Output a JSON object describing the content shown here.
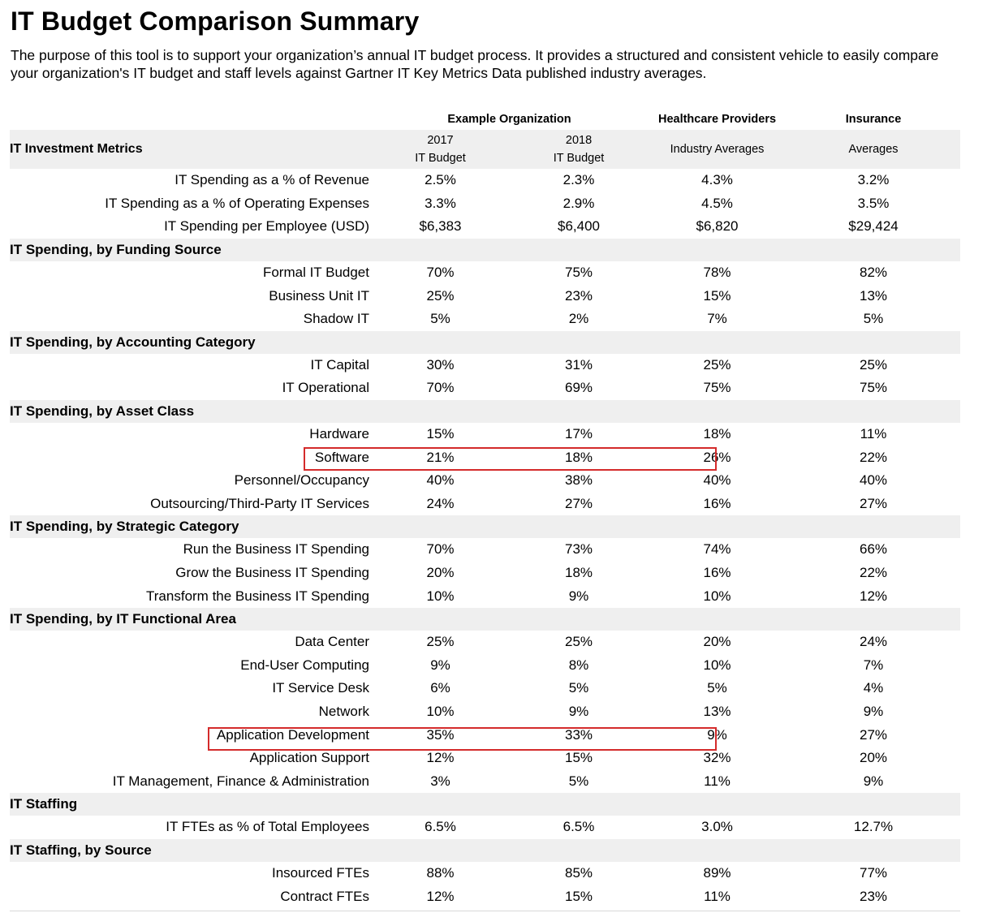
{
  "title": "IT Budget Comparison Summary",
  "description": "The purpose of this tool is to support your organization’s annual IT budget process. It provides a structured and consistent vehicle to easily compare your organization's IT budget and staff levels against Gartner IT Key Metrics Data published industry averages.",
  "header": {
    "group_example": "Example Organization",
    "group_healthcare": "Healthcare Providers",
    "group_insurance": "Insurance",
    "metrics_label": "IT Investment Metrics",
    "y2017_year": "2017",
    "y2017_sub": "IT Budget",
    "y2018_year": "2018",
    "y2018_sub": "IT Budget",
    "healthcare_sub": "Industry Averages",
    "insurance_sub": "Averages"
  },
  "investment_rows": [
    {
      "label": "IT Spending as a % of Revenue",
      "y2017": "2.5%",
      "y2018": "2.3%",
      "healthcare": "4.3%",
      "insurance": "3.2%"
    },
    {
      "label": "IT Spending as a % of Operating Expenses",
      "y2017": "3.3%",
      "y2018": "2.9%",
      "healthcare": "4.5%",
      "insurance": "3.5%"
    },
    {
      "label": "IT Spending per Employee (USD)",
      "y2017": "$6,383",
      "y2018": "$6,400",
      "healthcare": "$6,820",
      "insurance": "$29,424"
    }
  ],
  "sections": [
    {
      "title": "IT Spending, by Funding Source",
      "rows": [
        {
          "label": "Formal IT Budget",
          "y2017": "70%",
          "y2018": "75%",
          "healthcare": "78%",
          "insurance": "82%"
        },
        {
          "label": "Business Unit IT",
          "y2017": "25%",
          "y2018": "23%",
          "healthcare": "15%",
          "insurance": "13%"
        },
        {
          "label": "Shadow IT",
          "y2017": "5%",
          "y2018": "2%",
          "healthcare": "7%",
          "insurance": "5%"
        }
      ]
    },
    {
      "title": "IT Spending, by Accounting Category",
      "rows": [
        {
          "label": "IT Capital",
          "y2017": "30%",
          "y2018": "31%",
          "healthcare": "25%",
          "insurance": "25%"
        },
        {
          "label": "IT Operational",
          "y2017": "70%",
          "y2018": "69%",
          "healthcare": "75%",
          "insurance": "75%"
        }
      ]
    },
    {
      "title": "IT Spending, by Asset Class",
      "rows": [
        {
          "label": "Hardware",
          "y2017": "15%",
          "y2018": "17%",
          "healthcare": "18%",
          "insurance": "11%"
        },
        {
          "label": "Software",
          "y2017": "21%",
          "y2018": "18%",
          "healthcare": "26%",
          "insurance": "22%"
        },
        {
          "label": "Personnel/Occupancy",
          "y2017": "40%",
          "y2018": "38%",
          "healthcare": "40%",
          "insurance": "40%"
        },
        {
          "label": "Outsourcing/Third-Party IT Services",
          "y2017": "24%",
          "y2018": "27%",
          "healthcare": "16%",
          "insurance": "27%"
        }
      ]
    },
    {
      "title": "IT Spending, by Strategic Category",
      "rows": [
        {
          "label": "Run the Business IT Spending",
          "y2017": "70%",
          "y2018": "73%",
          "healthcare": "74%",
          "insurance": "66%"
        },
        {
          "label": "Grow the Business IT Spending",
          "y2017": "20%",
          "y2018": "18%",
          "healthcare": "16%",
          "insurance": "22%"
        },
        {
          "label": "Transform the Business IT Spending",
          "y2017": "10%",
          "y2018": "9%",
          "healthcare": "10%",
          "insurance": "12%"
        }
      ]
    },
    {
      "title": "IT Spending, by IT Functional Area",
      "rows": [
        {
          "label": "Data Center",
          "y2017": "25%",
          "y2018": "25%",
          "healthcare": "20%",
          "insurance": "24%"
        },
        {
          "label": "End-User Computing",
          "y2017": "9%",
          "y2018": "8%",
          "healthcare": "10%",
          "insurance": "7%"
        },
        {
          "label": "IT Service Desk",
          "y2017": "6%",
          "y2018": "5%",
          "healthcare": "5%",
          "insurance": "4%"
        },
        {
          "label": "Network",
          "y2017": "10%",
          "y2018": "9%",
          "healthcare": "13%",
          "insurance": "9%"
        },
        {
          "label": "Application Development",
          "y2017": "35%",
          "y2018": "33%",
          "healthcare": "9%",
          "insurance": "27%"
        },
        {
          "label": "Application Support",
          "y2017": "12%",
          "y2018": "15%",
          "healthcare": "32%",
          "insurance": "20%"
        },
        {
          "label": "IT Management, Finance & Administration",
          "y2017": "3%",
          "y2018": "5%",
          "healthcare": "11%",
          "insurance": "9%"
        }
      ]
    },
    {
      "title": "IT Staffing",
      "rows": [
        {
          "label": "IT FTEs as % of Total Employees",
          "y2017": "6.5%",
          "y2018": "6.5%",
          "healthcare": "3.0%",
          "insurance": "12.7%"
        }
      ]
    },
    {
      "title": "IT Staffing, by Source",
      "rows": [
        {
          "label": "Insourced FTEs",
          "y2017": "88%",
          "y2018": "85%",
          "healthcare": "89%",
          "insurance": "77%"
        },
        {
          "label": "Contract FTEs",
          "y2017": "12%",
          "y2018": "15%",
          "healthcare": "11%",
          "insurance": "23%"
        }
      ]
    }
  ],
  "highlight_color": "#d42b2b"
}
